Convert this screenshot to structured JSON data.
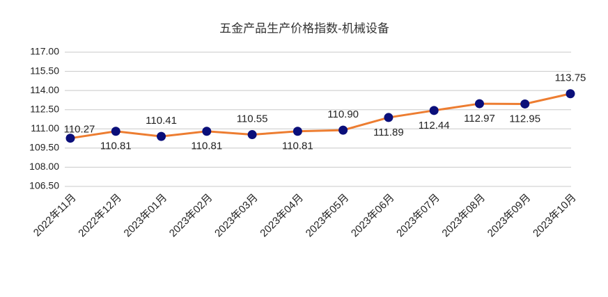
{
  "chart_data": {
    "type": "line",
    "title": "五金产品生产价格指数-机械设备",
    "categories": [
      "2022年11月",
      "2022年12月",
      "2023年01月",
      "2023年02月",
      "2023年03月",
      "2023年04月",
      "2023年05月",
      "2023年06月",
      "2023年07月",
      "2023年08月",
      "2023年09月",
      "2023年10月"
    ],
    "series": [
      {
        "name": "机械设备",
        "color": "#ed7d31",
        "marker_color": "#0b0f7a",
        "values": [
          110.27,
          110.81,
          110.41,
          110.81,
          110.55,
          110.81,
          110.9,
          111.89,
          112.44,
          112.97,
          112.95,
          113.75
        ],
        "value_labels": [
          "110.27",
          "110.81",
          "110.41",
          "110.81",
          "110.55",
          "110.81",
          "110.90",
          "111.89",
          "112.44",
          "112.97",
          "112.95",
          "113.75"
        ]
      }
    ],
    "ylim": [
      106.5,
      117
    ],
    "yticks": [
      {
        "value": 106.5,
        "label": "106.50"
      },
      {
        "value": 108,
        "label": "108.00"
      },
      {
        "value": 109.5,
        "label": "109.50"
      },
      {
        "value": 111,
        "label": "111.00"
      },
      {
        "value": 112.5,
        "label": "112.50"
      },
      {
        "value": 114,
        "label": "114.00"
      },
      {
        "value": 115.5,
        "label": "115.50"
      },
      {
        "value": 117,
        "label": "117.00"
      }
    ],
    "grid": true
  }
}
